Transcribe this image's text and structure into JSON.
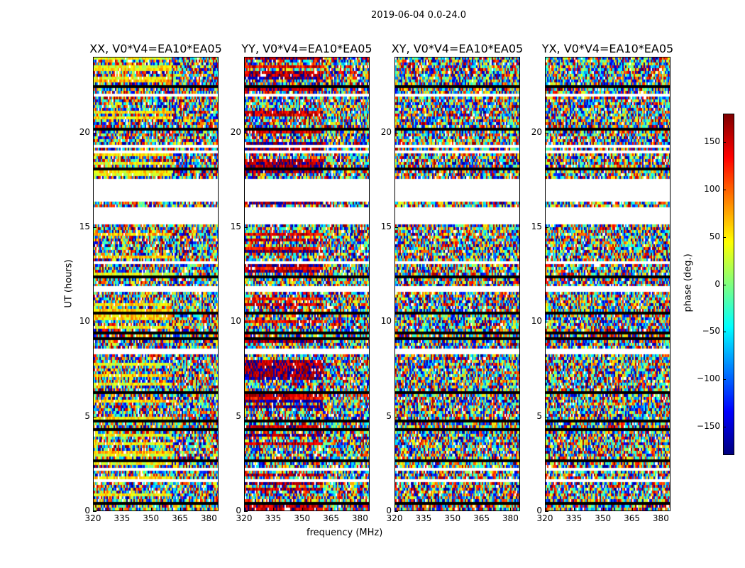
{
  "figure": {
    "suptitle": "2019-06-04 0.0-24.0",
    "xlabel": "frequency (MHz)",
    "ylabel": "UT (hours)",
    "colorbar_label": "phase (deg.)"
  },
  "chart_data": {
    "type": "heatmap",
    "colormap": "jet",
    "x_range": [
      320,
      385
    ],
    "x_ticks": [
      "320",
      "335",
      "350",
      "365",
      "380"
    ],
    "y_range": [
      0,
      24
    ],
    "y_ticks": [
      "0",
      "5",
      "10",
      "15",
      "20"
    ],
    "color_range": [
      -180,
      180
    ],
    "colorbar_ticks": [
      "150",
      "100",
      "50",
      "0",
      "−50",
      "−100",
      "−150"
    ],
    "colorbar_values": [
      150,
      100,
      50,
      0,
      -50,
      -100,
      -150
    ],
    "flagged_ut_ranges": [
      [
        16.3,
        17.5
      ],
      [
        15.3,
        16.0
      ],
      [
        2.1,
        2.3
      ],
      [
        8.3,
        8.5
      ],
      [
        11.6,
        11.8
      ],
      [
        3.4,
        3.5
      ],
      [
        1.5,
        1.6
      ],
      [
        18.7,
        18.8
      ],
      [
        21.9,
        22.0
      ]
    ],
    "panels": [
      {
        "title": "XX, V0*V4=EA10*EA05",
        "bias": 55,
        "bias_spread": 40
      },
      {
        "title": "YY, V0*V4=EA10*EA05",
        "bias": 160,
        "bias_spread": 70
      },
      {
        "title": "XY, V0*V4=EA10*EA05",
        "bias": 0,
        "bias_spread": 0
      },
      {
        "title": "YX, V0*V4=EA10*EA05",
        "bias": 0,
        "bias_spread": 0
      }
    ]
  }
}
